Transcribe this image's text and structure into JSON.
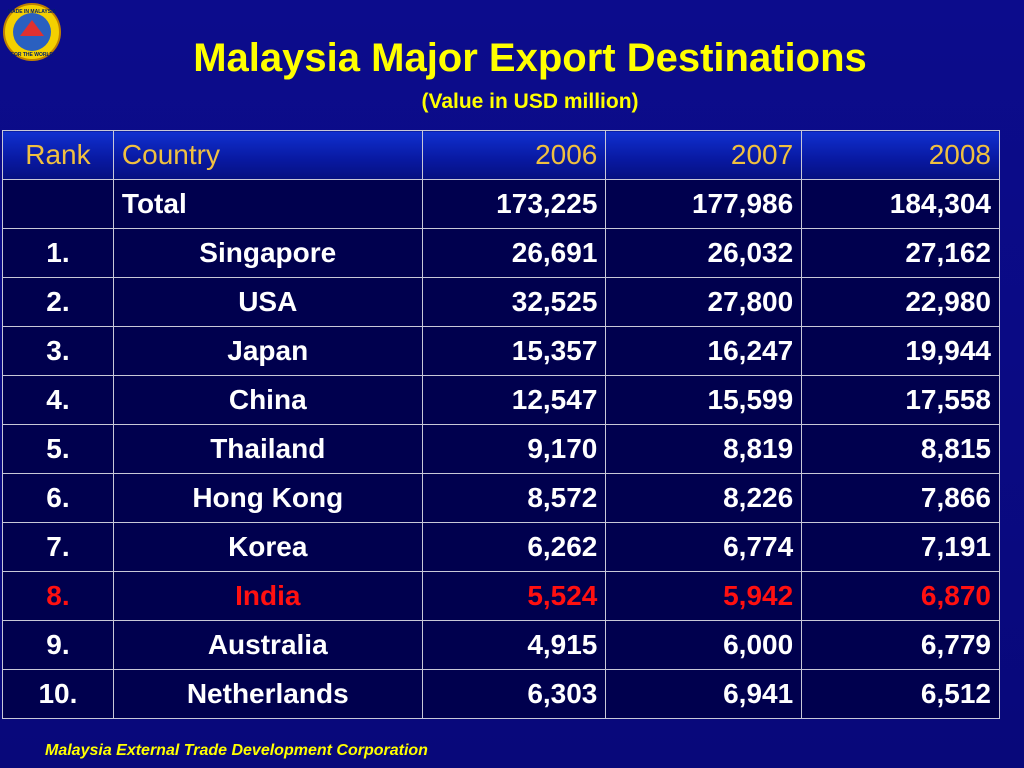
{
  "header": {
    "title": "Malaysia Major Export Destinations",
    "subtitle": "(Value in USD million)",
    "logo": {
      "top": "MADE IN MALAYSIA",
      "bottom": "FOR THE WORLD"
    }
  },
  "table": {
    "columns": [
      "Rank",
      "Country",
      "2006",
      "2007",
      "2008"
    ],
    "rows": [
      [
        "",
        "Total",
        "173,225",
        "177,986",
        "184,304"
      ],
      [
        "1.",
        "Singapore",
        "26,691",
        "26,032",
        "27,162"
      ],
      [
        "2.",
        "USA",
        "32,525",
        "27,800",
        "22,980"
      ],
      [
        "3.",
        "Japan",
        "15,357",
        "16,247",
        "19,944"
      ],
      [
        "4.",
        "China",
        "12,547",
        "15,599",
        "17,558"
      ],
      [
        "5.",
        "Thailand",
        "9,170",
        "8,819",
        "8,815"
      ],
      [
        "6.",
        "Hong Kong",
        "8,572",
        "8,226",
        "7,866"
      ],
      [
        "7.",
        "Korea",
        "6,262",
        "6,774",
        "7,191"
      ],
      [
        "8.",
        "India",
        "5,524",
        "5,942",
        "6,870"
      ],
      [
        "9.",
        "Australia",
        "4,915",
        "6,000",
        "6,779"
      ],
      [
        "10.",
        "Netherlands",
        "6,303",
        "6,941",
        "6,512"
      ]
    ],
    "highlight_row": 8,
    "highlight_color": "#ff1010"
  },
  "footer": {
    "source": "Malaysia External Trade Development Corporation"
  }
}
